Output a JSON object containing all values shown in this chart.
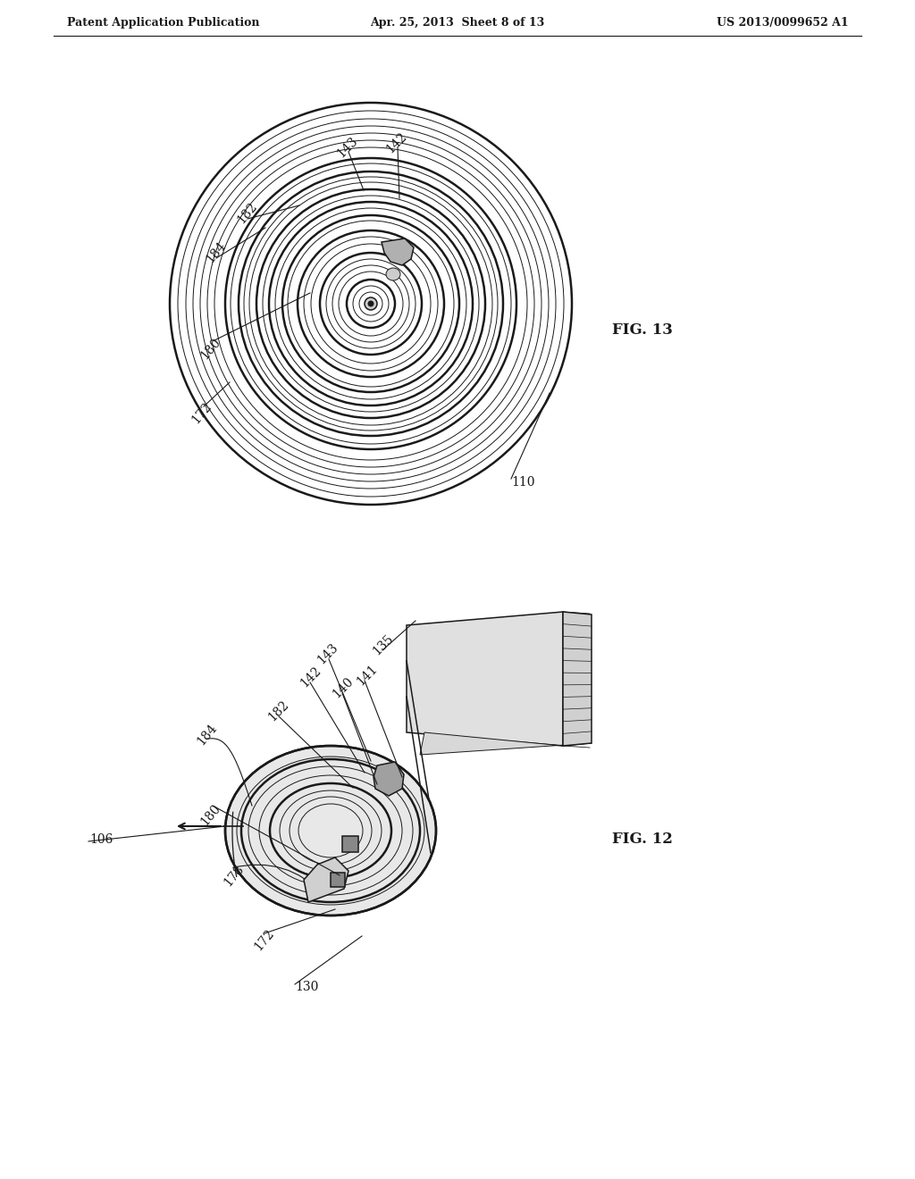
{
  "bg_color": "#ffffff",
  "line_color": "#1a1a1a",
  "header_left": "Patent Application Publication",
  "header_center": "Apr. 25, 2013  Sheet 8 of 13",
  "header_right": "US 2013/0099652 A1",
  "fig13_label": "FIG. 13",
  "fig12_label": "FIG. 12",
  "label_fontsize": 10,
  "header_fontsize": 9
}
